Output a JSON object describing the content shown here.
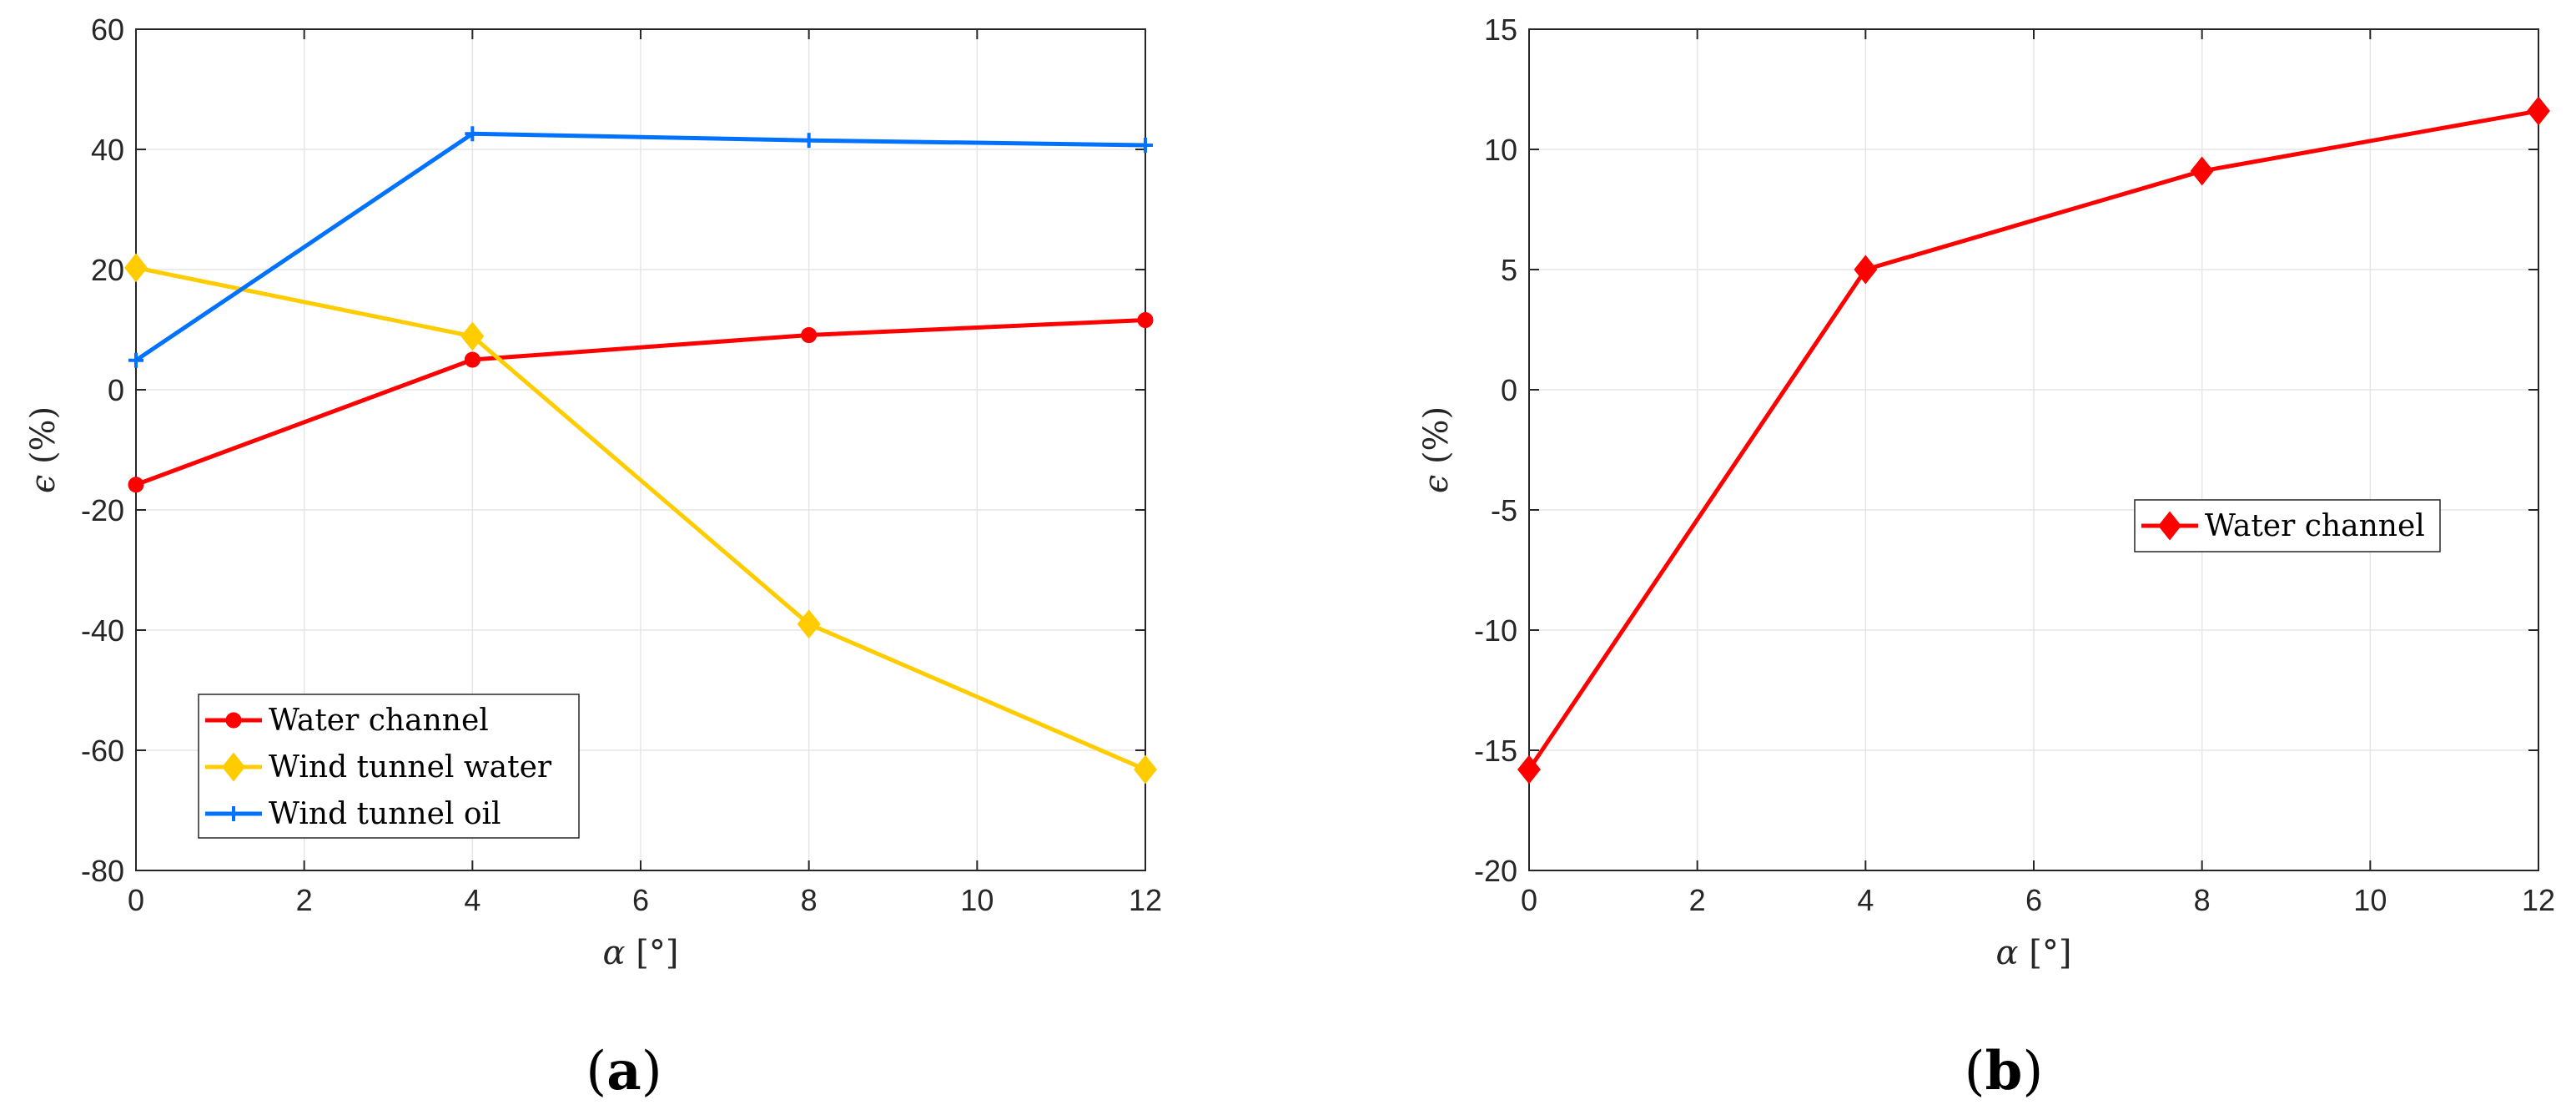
{
  "chart_data": [
    {
      "type": "line",
      "panel_label": "a",
      "xlabel_symbol": "α",
      "xlabel_unit": "[°]",
      "ylabel_symbol": "ϵ",
      "ylabel_unit": "(%)",
      "x": [
        0,
        4,
        8,
        12
      ],
      "xlim": [
        0,
        12
      ],
      "ylim": [
        -80,
        60
      ],
      "xticks": [
        0,
        2,
        4,
        6,
        8,
        10,
        12
      ],
      "yticks": [
        -80,
        -60,
        -40,
        -20,
        0,
        20,
        40,
        60
      ],
      "grid": true,
      "legend_position": "bottom-left",
      "series": [
        {
          "name": "Water channel",
          "values": [
            -15.8,
            5.0,
            9.1,
            11.6
          ],
          "color": "#ff0000",
          "marker": "circle"
        },
        {
          "name": "Wind tunnel water",
          "values": [
            20.3,
            8.9,
            -39.0,
            -63.2
          ],
          "color": "#ffcc00",
          "marker": "diamond"
        },
        {
          "name": "Wind tunnel oil",
          "values": [
            4.9,
            42.6,
            41.5,
            40.7
          ],
          "color": "#0072ff",
          "marker": "plus"
        }
      ]
    },
    {
      "type": "line",
      "panel_label": "b",
      "xlabel_symbol": "α",
      "xlabel_unit": "[°]",
      "ylabel_symbol": "ϵ",
      "ylabel_unit": "(%)",
      "x": [
        0,
        4,
        8,
        12
      ],
      "xlim": [
        0,
        12
      ],
      "ylim": [
        -20,
        15
      ],
      "xticks": [
        0,
        2,
        4,
        6,
        8,
        10,
        12
      ],
      "yticks": [
        -20,
        -15,
        -10,
        -5,
        0,
        5,
        10,
        15
      ],
      "grid": true,
      "legend_position": "center-right",
      "series": [
        {
          "name": "Water channel",
          "values": [
            -15.8,
            5.0,
            9.1,
            11.6
          ],
          "color": "#ff0000",
          "marker": "diamond"
        }
      ]
    }
  ]
}
